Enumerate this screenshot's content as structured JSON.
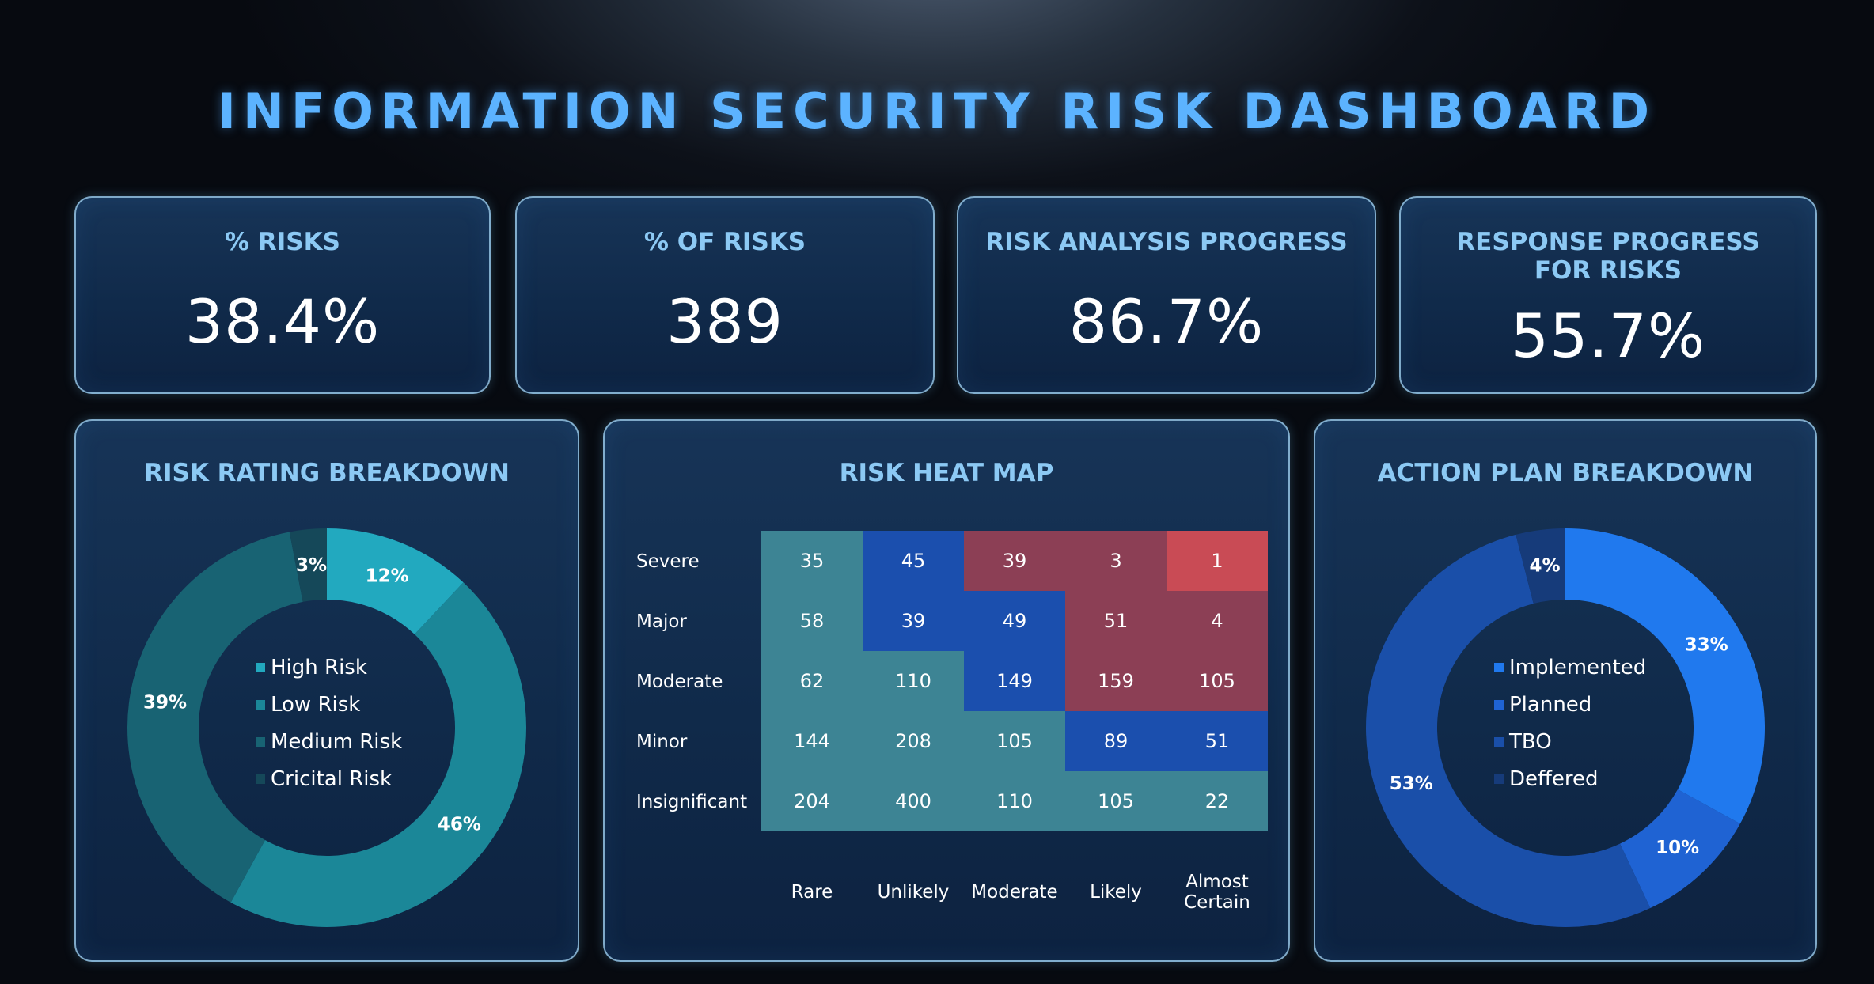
{
  "title": "INFORMATION SECURITY RISK DASHBOARD",
  "kpis": [
    {
      "label": "% RISKS",
      "value": "38.4%"
    },
    {
      "label": "% OF RISKS",
      "value": "389"
    },
    {
      "label": "RISK ANALYSIS PROGRESS",
      "value": "86.7%"
    },
    {
      "label_line1": "RESPONSE PROGRESS",
      "label_line2": "FOR RISKS",
      "value": "55.7%"
    }
  ],
  "colors": {
    "background": "#0b0f16",
    "title": "#5cb3ff",
    "panel_title": "#8cc9f4",
    "heat_teal": "#3d8494",
    "heat_blue": "#1b4fae",
    "heat_maroon": "#8c3f55",
    "heat_red": "#c94b55"
  },
  "risk_rating": {
    "title": "RISK RATING BREAKDOWN",
    "chart_data": {
      "type": "pie",
      "variant": "donut",
      "start": "top",
      "direction": "clockwise",
      "slices": [
        {
          "name": "High Risk",
          "value": 12,
          "label": "12%",
          "color": "#22a9bf"
        },
        {
          "name": "Low Risk",
          "value": 46,
          "label": "46%",
          "color": "#1b8798"
        },
        {
          "name": "Medium Risk",
          "value": 39,
          "label": "39%",
          "color": "#186373"
        },
        {
          "name": "Cricital Risk",
          "value": 3,
          "label": "3%",
          "color": "#154859"
        }
      ],
      "legend_placement": "center"
    }
  },
  "heat_map": {
    "title": "RISK HEAT MAP",
    "chart_data": {
      "type": "heatmap",
      "rows": [
        "Severe",
        "Major",
        "Moderate",
        "Minor",
        "Insignificant"
      ],
      "columns": [
        {
          "line1": "Rare",
          "line2": ""
        },
        {
          "line1": "Unlikely",
          "line2": ""
        },
        {
          "line1": "Moderate",
          "line2": ""
        },
        {
          "line1": "Likely",
          "line2": ""
        },
        {
          "line1": "Almost",
          "line2": "Certain"
        }
      ],
      "values": [
        [
          35,
          45,
          39,
          3,
          1
        ],
        [
          58,
          39,
          49,
          51,
          4
        ],
        [
          62,
          110,
          149,
          159,
          105
        ],
        [
          144,
          208,
          105,
          89,
          51
        ],
        [
          204,
          400,
          110,
          105,
          22
        ]
      ],
      "levels": [
        [
          "teal",
          "blue",
          "maroon",
          "maroon",
          "red"
        ],
        [
          "teal",
          "blue",
          "blue",
          "maroon",
          "maroon"
        ],
        [
          "teal",
          "teal",
          "blue",
          "maroon",
          "maroon"
        ],
        [
          "teal",
          "teal",
          "teal",
          "blue",
          "blue"
        ],
        [
          "teal",
          "teal",
          "teal",
          "teal",
          "teal"
        ]
      ]
    }
  },
  "action_plan": {
    "title": "ACTION PLAN BREAKDOWN",
    "chart_data": {
      "type": "pie",
      "variant": "donut",
      "start": "top",
      "direction": "clockwise",
      "slices": [
        {
          "name": "Implemented",
          "value": 33,
          "label": "33%",
          "color": "#2079ee"
        },
        {
          "name": "Planned",
          "value": 10,
          "label": "10%",
          "color": "#1f63d3"
        },
        {
          "name": "TBO",
          "value": 53,
          "label": "53%",
          "color": "#1a4fa9"
        },
        {
          "name": "Deffered",
          "value": 4,
          "label": "4%",
          "color": "#163b7a"
        }
      ],
      "legend_placement": "center"
    }
  }
}
